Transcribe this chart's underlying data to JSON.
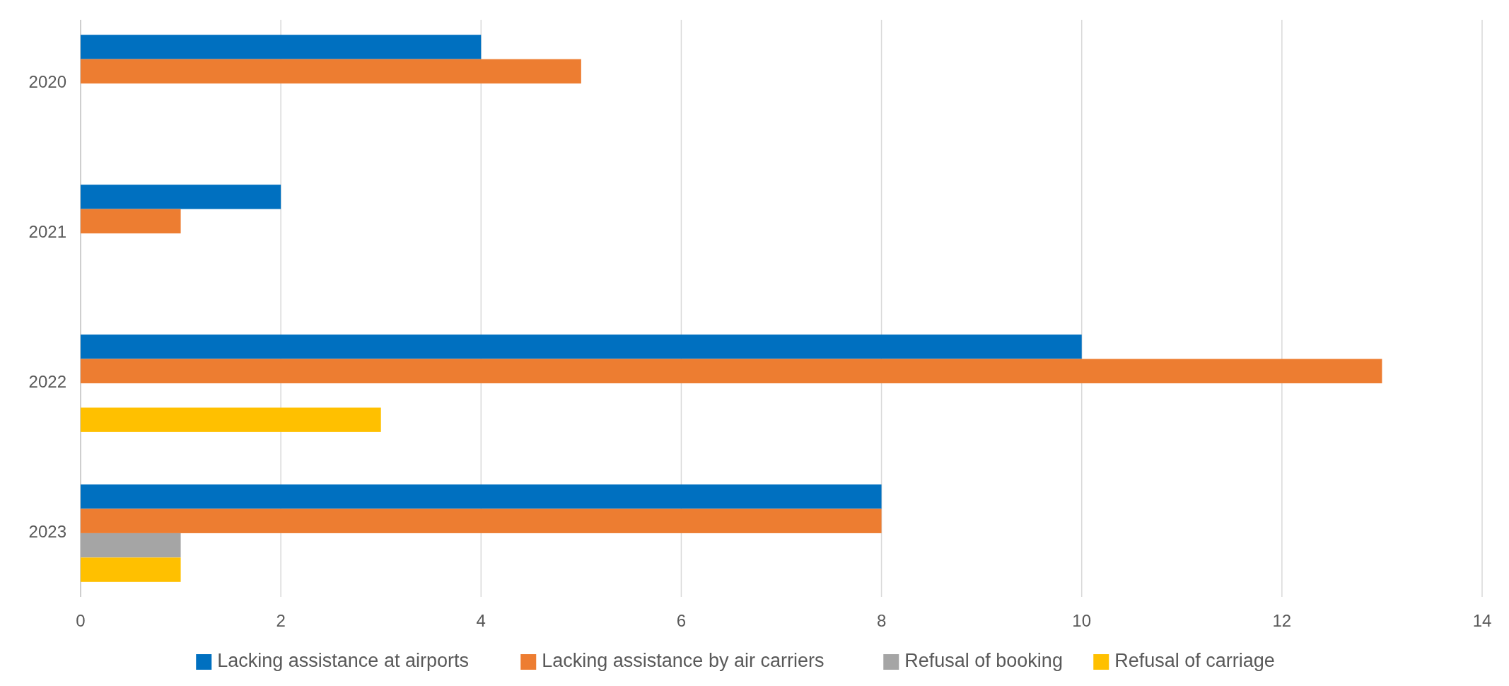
{
  "chart_data": {
    "type": "bar",
    "orientation": "horizontal",
    "categories": [
      "2020",
      "2021",
      "2022",
      "2023"
    ],
    "series": [
      {
        "name": "Lacking assistance at airports",
        "color": "#0070c0",
        "values": [
          4,
          2,
          10,
          8
        ]
      },
      {
        "name": "Lacking assistance by air carriers",
        "color": "#ed7d31",
        "values": [
          5,
          1,
          13,
          8
        ]
      },
      {
        "name": "Refusal of booking",
        "color": "#a5a5a5",
        "values": [
          null,
          null,
          null,
          1
        ]
      },
      {
        "name": "Refusal of carriage",
        "color": "#ffc000",
        "values": [
          null,
          null,
          3,
          1
        ]
      }
    ],
    "xlim": [
      0,
      14
    ],
    "xticks": [
      0,
      2,
      4,
      6,
      8,
      10,
      12,
      14
    ],
    "grid": "x",
    "legend": "bottom"
  }
}
